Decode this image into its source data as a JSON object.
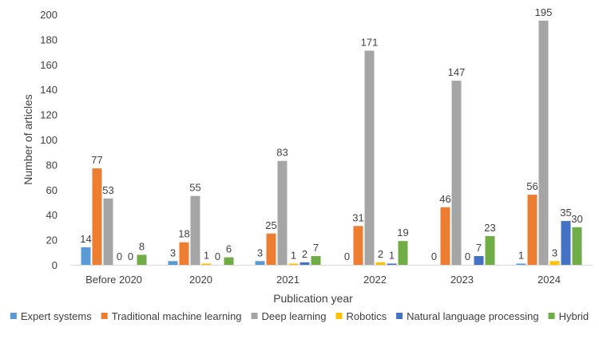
{
  "chart_data": {
    "type": "bar",
    "title": "",
    "xlabel": "Publication year",
    "ylabel": "Number of articles",
    "ylim": [
      0,
      200
    ],
    "ytick_step": 20,
    "grid": false,
    "legend_position": "bottom",
    "categories": [
      "Before 2020",
      "2020",
      "2021",
      "2022",
      "2023",
      "2024"
    ],
    "series": [
      {
        "name": "Expert systems",
        "color": "#5B9BD5",
        "values": [
          14,
          3,
          3,
          0,
          0,
          1
        ]
      },
      {
        "name": "Traditional machine learning",
        "color": "#ED7D31",
        "values": [
          77,
          18,
          25,
          31,
          46,
          56
        ]
      },
      {
        "name": "Deep learning",
        "color": "#A5A5A5",
        "values": [
          53,
          55,
          83,
          171,
          147,
          195
        ]
      },
      {
        "name": "Robotics",
        "color": "#FFC000",
        "values": [
          0,
          1,
          1,
          2,
          0,
          3
        ]
      },
      {
        "name": "Natural language processing",
        "color": "#4472C4",
        "values": [
          0,
          0,
          2,
          1,
          7,
          35
        ]
      },
      {
        "name": "Hybrid",
        "color": "#70AD47",
        "values": [
          8,
          6,
          7,
          19,
          23,
          30
        ]
      }
    ]
  }
}
